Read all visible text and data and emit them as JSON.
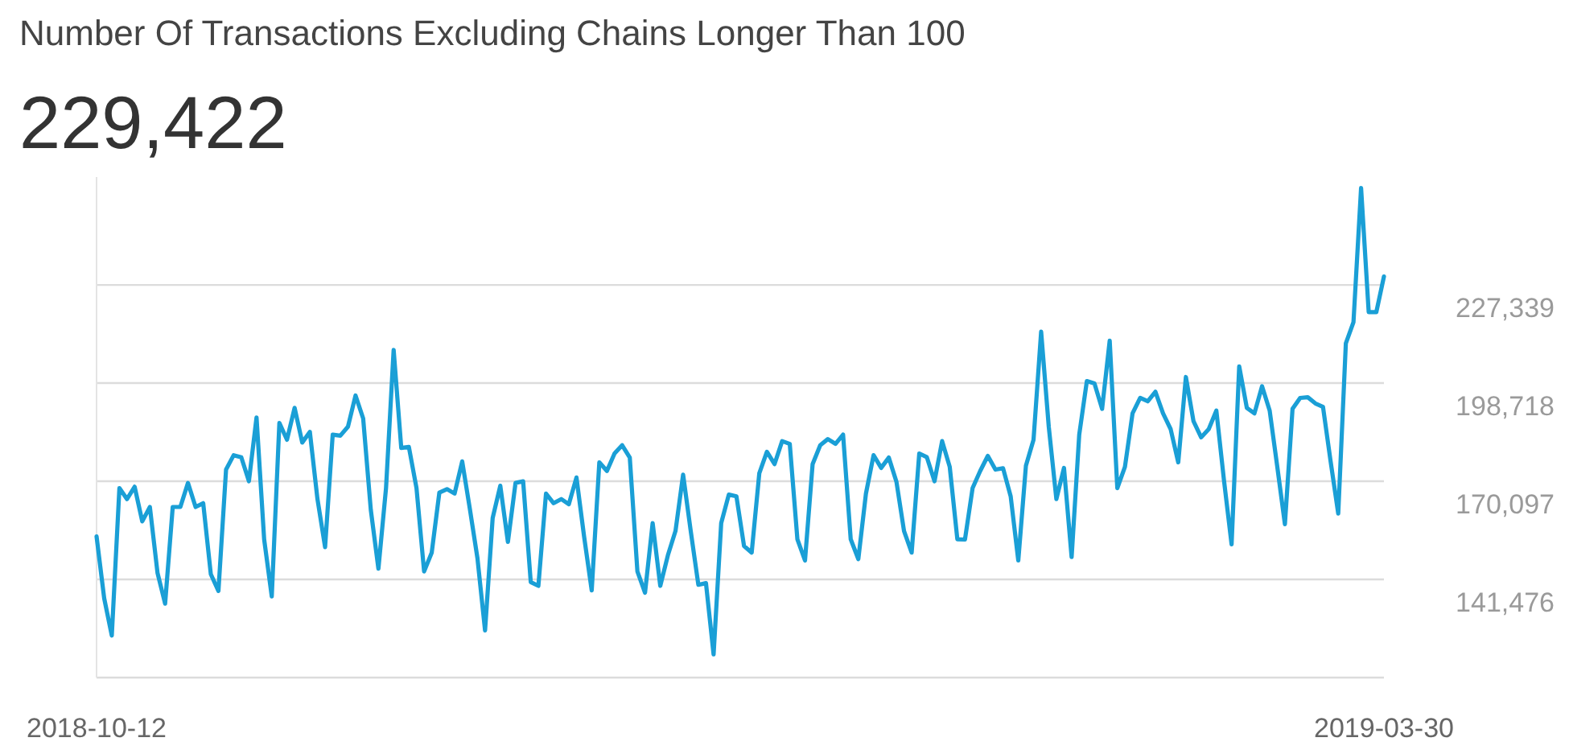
{
  "chart_data": {
    "type": "line",
    "title": "Number Of Transactions Excluding Chains Longer Than 100",
    "subtitle": "229,422",
    "x": [
      "2018-10-12",
      "2018-10-13",
      "2018-10-14",
      "2018-10-15",
      "2018-10-16",
      "2018-10-17",
      "2018-10-18",
      "2018-10-19",
      "2018-10-20",
      "2018-10-21",
      "2018-10-22",
      "2018-10-23",
      "2018-10-24",
      "2018-10-25",
      "2018-10-26",
      "2018-10-27",
      "2018-10-28",
      "2018-10-29",
      "2018-10-30",
      "2018-10-31",
      "2018-11-01",
      "2018-11-02",
      "2018-11-03",
      "2018-11-04",
      "2018-11-05",
      "2018-11-06",
      "2018-11-07",
      "2018-11-08",
      "2018-11-09",
      "2018-11-10",
      "2018-11-11",
      "2018-11-12",
      "2018-11-13",
      "2018-11-14",
      "2018-11-15",
      "2018-11-16",
      "2018-11-17",
      "2018-11-18",
      "2018-11-19",
      "2018-11-20",
      "2018-11-21",
      "2018-11-22",
      "2018-11-23",
      "2018-11-24",
      "2018-11-25",
      "2018-11-26",
      "2018-11-27",
      "2018-11-28",
      "2018-11-29",
      "2018-11-30",
      "2018-12-01",
      "2018-12-02",
      "2018-12-03",
      "2018-12-04",
      "2018-12-05",
      "2018-12-06",
      "2018-12-07",
      "2018-12-08",
      "2018-12-09",
      "2018-12-10",
      "2018-12-11",
      "2018-12-12",
      "2018-12-13",
      "2018-12-14",
      "2018-12-15",
      "2018-12-16",
      "2018-12-17",
      "2018-12-18",
      "2018-12-19",
      "2018-12-20",
      "2018-12-21",
      "2018-12-22",
      "2018-12-23",
      "2018-12-24",
      "2018-12-25",
      "2018-12-26",
      "2018-12-27",
      "2018-12-28",
      "2018-12-29",
      "2018-12-30",
      "2018-12-31",
      "2019-01-01",
      "2019-01-02",
      "2019-01-03",
      "2019-01-04",
      "2019-01-05",
      "2019-01-06",
      "2019-01-07",
      "2019-01-08",
      "2019-01-09",
      "2019-01-10",
      "2019-01-11",
      "2019-01-12",
      "2019-01-13",
      "2019-01-14",
      "2019-01-15",
      "2019-01-16",
      "2019-01-17",
      "2019-01-18",
      "2019-01-19",
      "2019-01-20",
      "2019-01-21",
      "2019-01-22",
      "2019-01-23",
      "2019-01-24",
      "2019-01-25",
      "2019-01-26",
      "2019-01-27",
      "2019-01-28",
      "2019-01-29",
      "2019-01-30",
      "2019-01-31",
      "2019-02-01",
      "2019-02-02",
      "2019-02-03",
      "2019-02-04",
      "2019-02-05",
      "2019-02-06",
      "2019-02-07",
      "2019-02-08",
      "2019-02-09",
      "2019-02-10",
      "2019-02-11",
      "2019-02-12",
      "2019-02-13",
      "2019-02-14",
      "2019-02-15",
      "2019-02-16",
      "2019-02-17",
      "2019-02-18",
      "2019-02-19",
      "2019-02-20",
      "2019-02-21",
      "2019-02-22",
      "2019-02-23",
      "2019-02-24",
      "2019-02-25",
      "2019-02-26",
      "2019-02-27",
      "2019-02-28",
      "2019-03-01",
      "2019-03-02",
      "2019-03-03",
      "2019-03-04",
      "2019-03-05",
      "2019-03-06",
      "2019-03-07",
      "2019-03-08",
      "2019-03-09",
      "2019-03-10",
      "2019-03-11",
      "2019-03-12",
      "2019-03-13",
      "2019-03-14",
      "2019-03-15",
      "2019-03-16",
      "2019-03-17",
      "2019-03-18",
      "2019-03-19",
      "2019-03-20",
      "2019-03-21",
      "2019-03-22",
      "2019-03-23",
      "2019-03-24",
      "2019-03-25",
      "2019-03-26",
      "2019-03-27",
      "2019-03-28",
      "2019-03-29",
      "2019-03-30"
    ],
    "series": [
      {
        "color": "#1a9fd6",
        "values": [
          154000,
          136000,
          125100,
          168100,
          164900,
          168500,
          158400,
          162600,
          143400,
          134400,
          162600,
          162600,
          169600,
          162600,
          163700,
          143000,
          138100,
          173500,
          177700,
          177100,
          170100,
          188700,
          153200,
          136500,
          187100,
          182200,
          191500,
          181400,
          184500,
          164900,
          150900,
          183700,
          183400,
          186000,
          195100,
          188400,
          161800,
          144600,
          168100,
          208400,
          179800,
          180100,
          168100,
          143800,
          149300,
          166800,
          167800,
          166500,
          175900,
          162100,
          147700,
          126600,
          159400,
          168800,
          152400,
          169600,
          170100,
          140700,
          139600,
          166500,
          163700,
          164900,
          163400,
          171200,
          154000,
          138300,
          175600,
          173100,
          178200,
          180600,
          177000,
          143800,
          137600,
          157900,
          139600,
          148500,
          155600,
          172000,
          155600,
          139900,
          140400,
          119600,
          157900,
          166200,
          165700,
          151200,
          149300,
          172400,
          178700,
          175100,
          181800,
          181000,
          153200,
          147000,
          175100,
          180600,
          182400,
          181000,
          183700,
          153200,
          147400,
          166500,
          177700,
          174000,
          177000,
          170000,
          155600,
          149300,
          178200,
          177100,
          170100,
          181800,
          174300,
          153200,
          153100,
          168100,
          173100,
          177500,
          173500,
          173900,
          165700,
          147000,
          174600,
          182200,
          213700,
          186000,
          164900,
          174000,
          148000,
          183700,
          199300,
          198600,
          191200,
          211100,
          168100,
          174300,
          189900,
          194400,
          193400,
          196200,
          189900,
          185300,
          175600,
          200500,
          187600,
          182900,
          185300,
          190700,
          170400,
          151700,
          203600,
          191500,
          189900,
          197800,
          190700,
          174300,
          157600,
          191200,
          194400,
          194600,
          192800,
          191800,
          175900,
          160700,
          210300,
          216500,
          255600,
          219400,
          219400,
          229800
        ]
      }
    ],
    "xlim": [
      "2018-10-12",
      "2019-03-30"
    ],
    "ylim": [
      112855,
      258800
    ],
    "xticks": [
      "2018-10-12",
      "2019-03-30"
    ],
    "yticks": [
      {
        "value": 112855,
        "label": null
      },
      {
        "value": 141476,
        "label": "141,476"
      },
      {
        "value": 170097,
        "label": "170,097"
      },
      {
        "value": 198718,
        "label": "198,718"
      },
      {
        "value": 227339,
        "label": "227,339"
      }
    ],
    "grid": "y"
  }
}
